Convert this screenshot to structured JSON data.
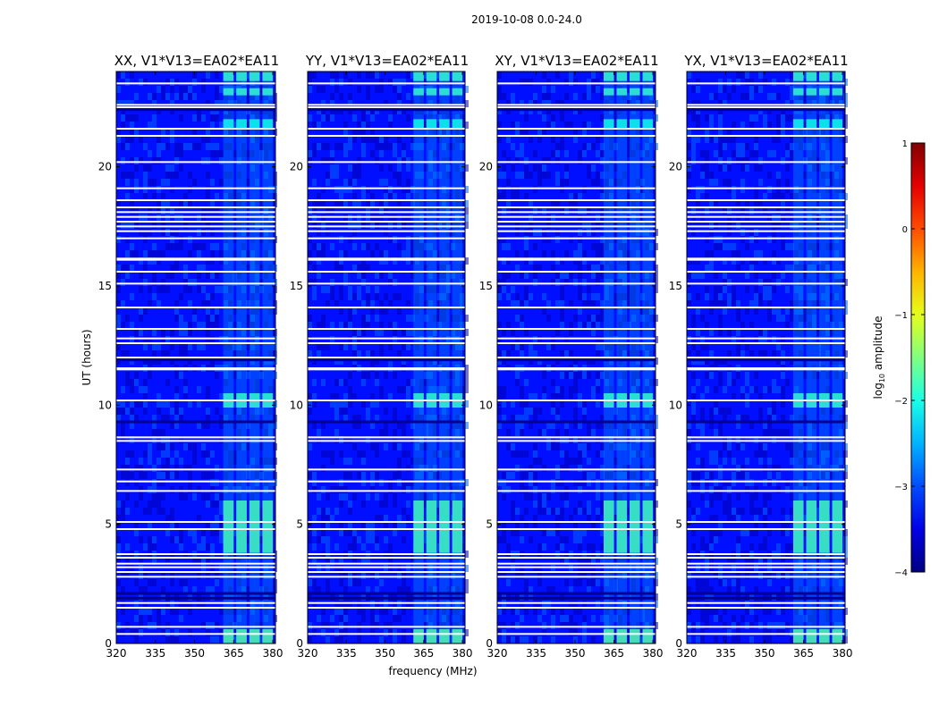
{
  "figure_title": "2019-10-08 0.0-24.0",
  "chart_data": {
    "type": "heatmap",
    "panels": [
      {
        "title": "XX, V1*V13=EA02*EA11"
      },
      {
        "title": "YY, V1*V13=EA02*EA11"
      },
      {
        "title": "XY, V1*V13=EA02*EA11"
      },
      {
        "title": "YX, V1*V13=EA02*EA11"
      }
    ],
    "xlabel": "frequency (MHz)",
    "ylabel": "UT (hours)",
    "xlim": [
      320,
      381
    ],
    "ylim": [
      0,
      24
    ],
    "xticks": [
      320,
      335,
      350,
      365,
      380
    ],
    "yticks": [
      0,
      5,
      10,
      15,
      20
    ],
    "colorbar": {
      "label_pre": "log",
      "label_sub": "10",
      "label_post": " amplitude",
      "range": [
        -4,
        1
      ],
      "ticks": [
        1,
        0,
        -1,
        -2,
        -3,
        -4
      ],
      "tick_labels": [
        "1",
        "0",
        "−1",
        "−2",
        "−3",
        "−4"
      ],
      "colormap": "jet"
    },
    "background_level": -3.3,
    "bright_band_freqs_mhz": [
      [
        361,
        365
      ],
      [
        366,
        370
      ],
      [
        371,
        375
      ],
      [
        376,
        380
      ]
    ],
    "bright_intervals_hours": [
      [
        3.8,
        6.0,
        -1.7
      ],
      [
        9.9,
        10.5,
        -1.8
      ],
      [
        0,
        0.6,
        -1.6
      ],
      [
        23.0,
        23.3,
        -1.8
      ],
      [
        21.6,
        22.0,
        -2.0
      ],
      [
        23.6,
        24,
        -1.8
      ]
    ],
    "flagged_hours": [
      0.4,
      0.7,
      1.5,
      1.7,
      2.8,
      3.0,
      3.2,
      3.35,
      3.6,
      3.75,
      4.8,
      5.1,
      6.4,
      6.8,
      7.3,
      8.5,
      8.65,
      10.2,
      11.5,
      11.55,
      12.0,
      12.6,
      12.8,
      13.2,
      14.1,
      15.1,
      15.6,
      16.1,
      16.15,
      17.0,
      17.3,
      17.5,
      17.7,
      17.9,
      18.1,
      18.3,
      18.6,
      19.1,
      20.2,
      21.3,
      21.6,
      22.5,
      22.6,
      23.5
    ],
    "dark_hours": [
      1.9,
      2.1,
      9.3,
      11.9,
      22.4,
      22.55
    ]
  }
}
